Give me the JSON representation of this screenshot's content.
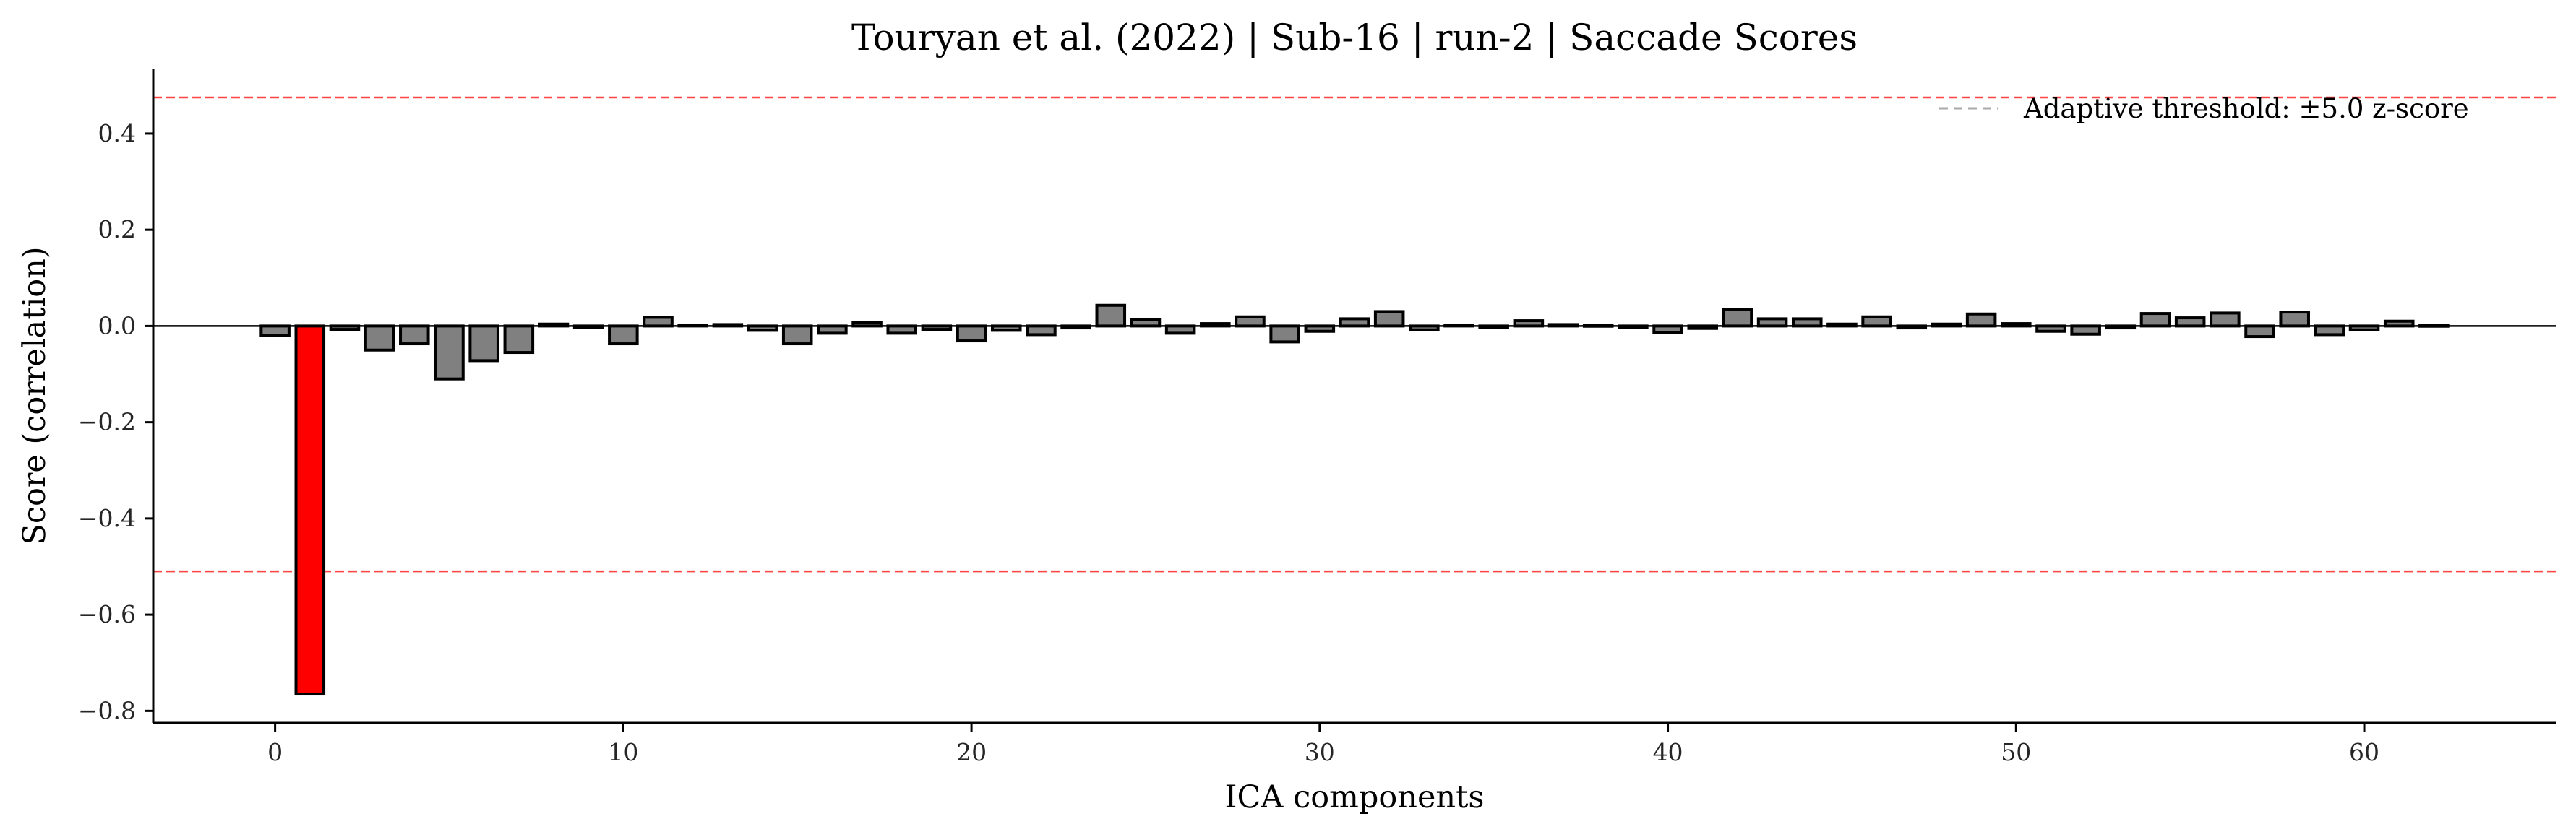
{
  "chart_data": {
    "type": "bar",
    "title": "Touryan et al. (2022) | Sub-16 | run-2 | Saccade Scores",
    "xlabel": "ICA components",
    "ylabel": "Score (correlation)",
    "xlim": [
      -3.5,
      65.5
    ],
    "ylim": [
      -0.825,
      0.535
    ],
    "xticks": [
      0,
      10,
      20,
      30,
      40,
      50,
      60
    ],
    "yticks": [
      0.4,
      0.2,
      0.0,
      -0.2,
      -0.4,
      -0.6,
      -0.8
    ],
    "ytick_labels": [
      "0.4",
      "0.2",
      "0.0",
      "−0.2",
      "−0.4",
      "−0.6",
      "−0.8"
    ],
    "x": [
      0,
      1,
      2,
      3,
      4,
      5,
      6,
      7,
      8,
      9,
      10,
      11,
      12,
      13,
      14,
      15,
      16,
      17,
      18,
      19,
      20,
      21,
      22,
      23,
      24,
      25,
      26,
      27,
      28,
      29,
      30,
      31,
      32,
      33,
      34,
      35,
      36,
      37,
      38,
      39,
      40,
      41,
      42,
      43,
      44,
      45,
      46,
      47,
      48,
      49,
      50,
      51,
      52,
      53,
      54,
      55,
      56,
      57,
      58,
      59,
      60,
      61,
      62
    ],
    "values": [
      -0.02,
      -0.765,
      -0.007,
      -0.05,
      -0.037,
      -0.11,
      -0.072,
      -0.055,
      0.004,
      -0.003,
      -0.037,
      0.018,
      0.002,
      0.003,
      -0.009,
      -0.037,
      -0.015,
      0.007,
      -0.015,
      -0.007,
      -0.031,
      -0.009,
      -0.018,
      -0.004,
      0.043,
      0.014,
      -0.015,
      0.005,
      0.019,
      -0.033,
      -0.011,
      0.015,
      0.03,
      -0.008,
      0.002,
      -0.003,
      0.011,
      0.003,
      0.001,
      -0.003,
      -0.014,
      -0.005,
      0.034,
      0.015,
      0.015,
      0.004,
      0.019,
      -0.004,
      0.004,
      0.025,
      0.005,
      -0.011,
      -0.017,
      -0.004,
      0.026,
      0.017,
      0.027,
      -0.022,
      0.029,
      -0.018,
      -0.008,
      0.01,
      0.001
    ],
    "highlighted": [
      1
    ],
    "colors": {
      "normal": "#808080",
      "highlighted": "#ff0000",
      "edge": "#000000",
      "threshold": "#ff4444",
      "legend_line": "#aaaaaa"
    },
    "thresholds": [
      0.475,
      -0.51
    ],
    "zero_line": 0.0,
    "legend": {
      "label": "Adaptive threshold: ±5.0 z-score",
      "placement": "top-right"
    },
    "grid": false
  }
}
